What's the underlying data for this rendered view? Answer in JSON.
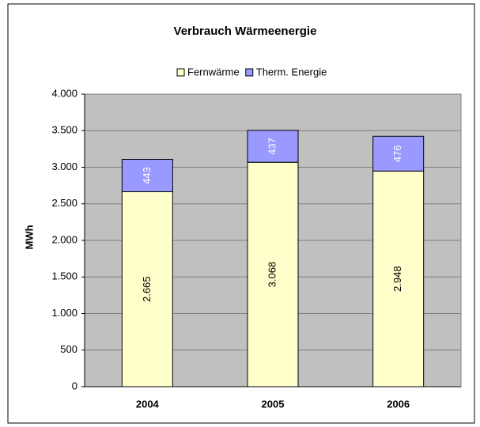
{
  "chart_data": {
    "type": "stacked_bar",
    "title": "Verbrauch Wärmeenergie",
    "ylabel": "MWh",
    "categories": [
      "2004",
      "2005",
      "2006"
    ],
    "series": [
      {
        "name": "Fernwärme",
        "color": "#ffffcc",
        "values": [
          2665,
          3068,
          2948
        ],
        "value_labels": [
          "2.665",
          "3.068",
          "2.948"
        ]
      },
      {
        "name": "Therm. Energie",
        "color": "#9999ff",
        "values": [
          443,
          437,
          476
        ]
      }
    ],
    "ylim": [
      0,
      4000
    ],
    "yticks": [
      0,
      500,
      {
        "value": 1000,
        "label": "1.000"
      },
      {
        "value": 1500,
        "label": "1.500"
      },
      {
        "value": 2000,
        "label": "2.000"
      },
      {
        "value": 2500,
        "label": "2.500"
      },
      {
        "value": 3000,
        "label": "3.000"
      },
      {
        "value": 3500,
        "label": "3.500"
      },
      {
        "value": 4000,
        "label": "4.000"
      }
    ],
    "grid": true,
    "legend": "top"
  }
}
